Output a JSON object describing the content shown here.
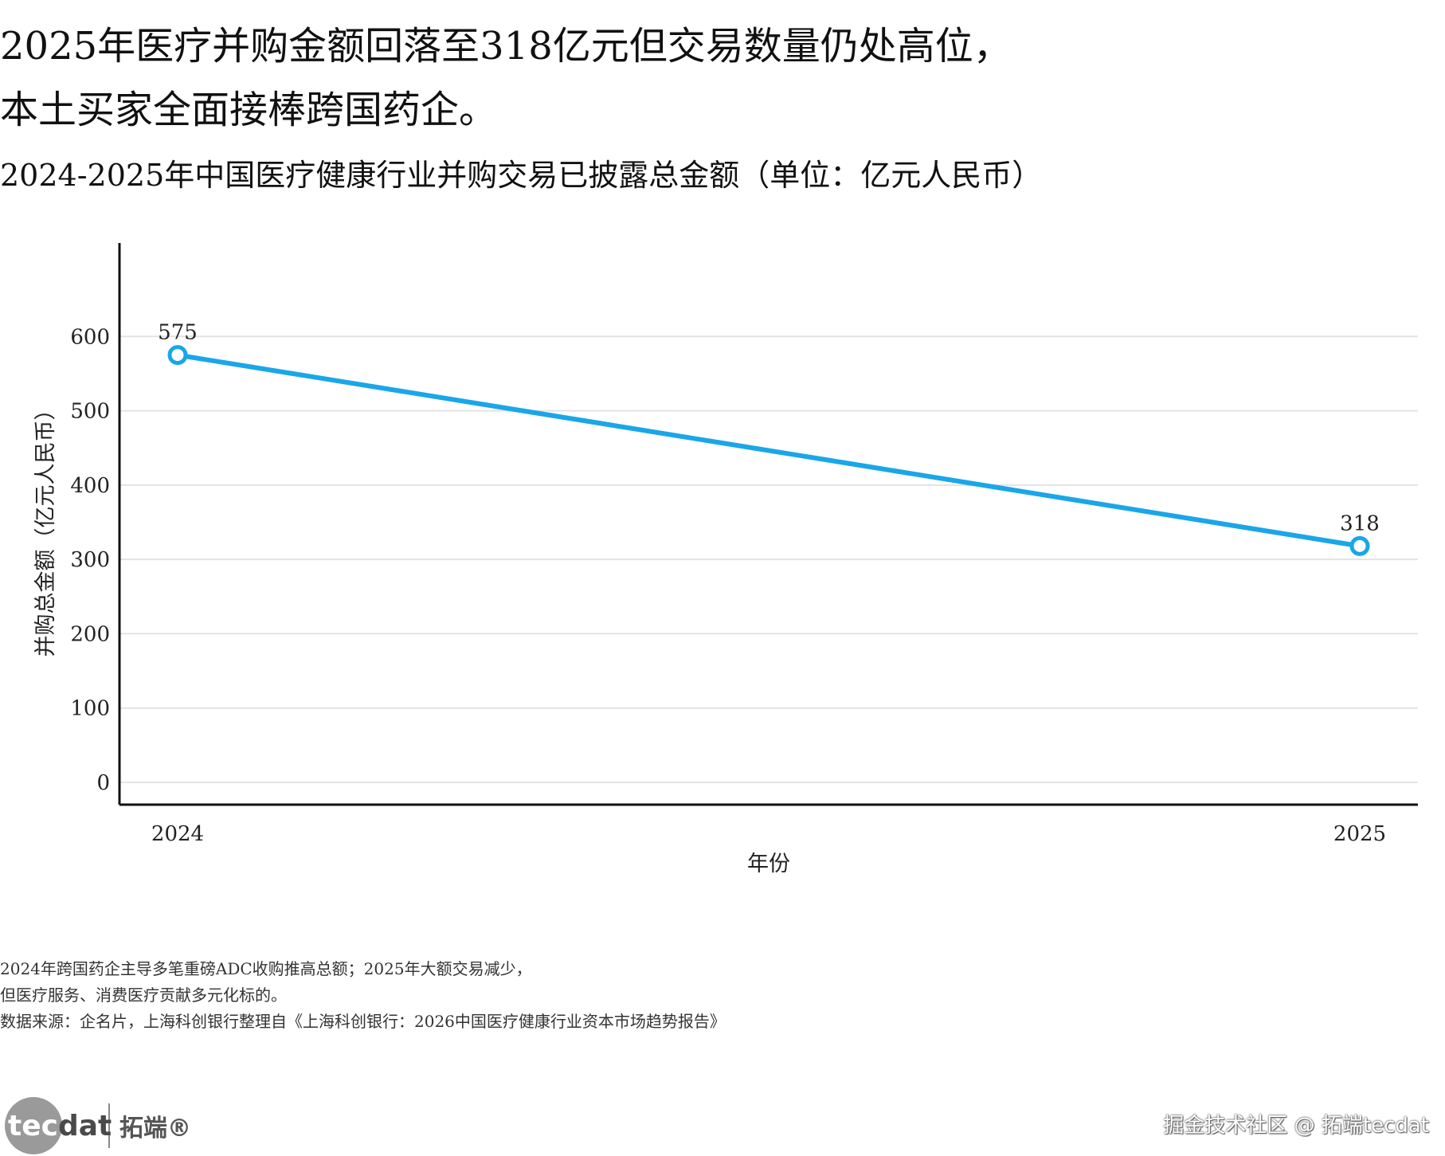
{
  "headline": {
    "line1": "2025年医疗并购金额回落至318亿元但交易数量仍处高位，",
    "line2": "本土买家全面接棒跨国药企。"
  },
  "chart_data": {
    "type": "line",
    "title": "2024-2025年中国医疗健康行业并购交易已披露总金额（单位：亿元人民币）",
    "xlabel": "年份",
    "ylabel": "并购总金额（亿元人民币）",
    "categories": [
      "2024",
      "2025"
    ],
    "series": [
      {
        "values": [
          575,
          318
        ],
        "data_labels": [
          "575",
          "318"
        ]
      }
    ],
    "ylim": [
      -30,
      715
    ],
    "yticks": [
      0,
      100,
      200,
      300,
      400,
      500,
      600
    ],
    "grid": "horizontal",
    "line_color": "#1aa6e8",
    "marker": "hollow-circle",
    "legend": "none"
  },
  "notes": {
    "line1": "2024年跨国药企主导多笔重磅ADC收购推高总额；2025年大额交易减少，",
    "line2": "但医疗服务、消费医疗贡献多元化标的。",
    "source": "数据来源：企名片，上海科创银行整理自《上海科创银行：2026中国医疗健康行业资本市场趋势报告》"
  },
  "footer": {
    "logo_text_a": "tec",
    "logo_text_b": "dat",
    "logo_cn": "拓端®",
    "watermark": "掘金技术社区 @ 拓端tecdat"
  }
}
